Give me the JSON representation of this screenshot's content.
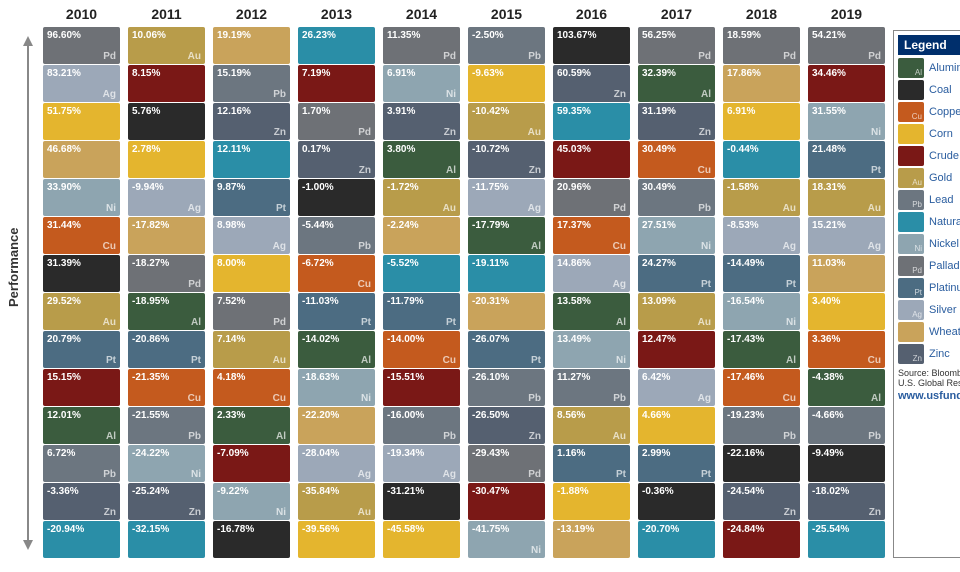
{
  "axis_label": "Performance",
  "years": [
    "2010",
    "2011",
    "2012",
    "2013",
    "2014",
    "2015",
    "2016",
    "2017",
    "2018",
    "2019"
  ],
  "commodities": {
    "Al": {
      "name": "Aluminum",
      "color": "#3b5c3e",
      "ico": ""
    },
    "Coal": {
      "name": "Coal",
      "color": "#2a2a2a",
      "ico": "",
      "sym": ""
    },
    "Cu": {
      "name": "Copper",
      "color": "#c45a1e",
      "ico": ""
    },
    "Corn": {
      "name": "Corn",
      "color": "#e4b52e",
      "ico": "",
      "sym": ""
    },
    "Oil": {
      "name": "Crude Oil",
      "color": "#7a1816",
      "ico": "",
      "sym": ""
    },
    "Au": {
      "name": "Gold",
      "color": "#b89c4a",
      "ico": ""
    },
    "Pb": {
      "name": "Lead",
      "color": "#6c7680",
      "ico": ""
    },
    "Gas": {
      "name": "Natural Gas",
      "color": "#2a8ea7",
      "ico": "",
      "sym": ""
    },
    "Ni": {
      "name": "Nickel",
      "color": "#8ea5b0",
      "ico": ""
    },
    "Pd": {
      "name": "Palladium",
      "color": "#6e7176",
      "ico": ""
    },
    "Pt": {
      "name": "Platinum",
      "color": "#4c6c82",
      "ico": ""
    },
    "Ag": {
      "name": "Silver",
      "color": "#9ca8b8",
      "ico": ""
    },
    "Wheat": {
      "name": "Wheat",
      "color": "#c9a35b",
      "ico": "",
      "sym": ""
    },
    "Zn": {
      "name": "Zinc",
      "color": "#556070",
      "ico": ""
    }
  },
  "legend_title": "Legend",
  "source": "Source: Bloomberg and U.S. Global Research",
  "url": "www.usfunds.com",
  "grid": [
    [
      [
        "Pd",
        "96.60%"
      ],
      [
        "Au",
        "10.06%"
      ],
      [
        "Wheat",
        "19.19%"
      ],
      [
        "Gas",
        "26.23%"
      ],
      [
        "Pd",
        "11.35%"
      ],
      [
        "Pb",
        "-2.50%"
      ],
      [
        "Coal",
        "103.67%"
      ],
      [
        "Pd",
        "56.25%"
      ],
      [
        "Pd",
        "18.59%"
      ],
      [
        "Pd",
        "54.21%"
      ]
    ],
    [
      [
        "Ag",
        "83.21%"
      ],
      [
        "Oil",
        "8.15%"
      ],
      [
        "Pb",
        "15.19%"
      ],
      [
        "Oil",
        "7.19%"
      ],
      [
        "Ni",
        "6.91%"
      ],
      [
        "Corn",
        "-9.63%"
      ],
      [
        "Zn",
        "60.59%"
      ],
      [
        "Al",
        "32.39%"
      ],
      [
        "Wheat",
        "17.86%"
      ],
      [
        "Oil",
        "34.46%"
      ]
    ],
    [
      [
        "Corn",
        "51.75%"
      ],
      [
        "Coal",
        "5.76%"
      ],
      [
        "Zn",
        "12.16%"
      ],
      [
        "Pd",
        "1.70%"
      ],
      [
        "Zn",
        "3.91%"
      ],
      [
        "Au",
        "-10.42%"
      ],
      [
        "Gas",
        "59.35%"
      ],
      [
        "Zn",
        "31.19%"
      ],
      [
        "Corn",
        "6.91%"
      ],
      [
        "Ni",
        "31.55%"
      ]
    ],
    [
      [
        "Wheat",
        "46.68%"
      ],
      [
        "Corn",
        "2.78%"
      ],
      [
        "Gas",
        "12.11%"
      ],
      [
        "Zn",
        "0.17%"
      ],
      [
        "Al",
        "3.80%"
      ],
      [
        "Zn",
        "-10.72%"
      ],
      [
        "Oil",
        "45.03%"
      ],
      [
        "Cu",
        "30.49%"
      ],
      [
        "Gas",
        "-0.44%"
      ],
      [
        "Pt",
        "21.48%"
      ]
    ],
    [
      [
        "Ni",
        "33.90%"
      ],
      [
        "Ag",
        "-9.94%"
      ],
      [
        "Pt",
        "9.87%"
      ],
      [
        "Coal",
        "-1.00%"
      ],
      [
        "Au",
        "-1.72%"
      ],
      [
        "Ag",
        "-11.75%"
      ],
      [
        "Pd",
        "20.96%"
      ],
      [
        "Pb",
        "30.49%"
      ],
      [
        "Au",
        "-1.58%"
      ],
      [
        "Au",
        "18.31%"
      ]
    ],
    [
      [
        "Cu",
        "31.44%"
      ],
      [
        "Wheat",
        "-17.82%"
      ],
      [
        "Ag",
        "8.98%"
      ],
      [
        "Pb",
        "-5.44%"
      ],
      [
        "Wheat",
        "-2.24%"
      ],
      [
        "Al",
        "-17.79%"
      ],
      [
        "Cu",
        "17.37%"
      ],
      [
        "Ni",
        "27.51%"
      ],
      [
        "Ag",
        "-8.53%"
      ],
      [
        "Ag",
        "15.21%"
      ]
    ],
    [
      [
        "Coal",
        "31.39%"
      ],
      [
        "Pd",
        "-18.27%"
      ],
      [
        "Corn",
        "8.00%"
      ],
      [
        "Cu",
        "-6.72%"
      ],
      [
        "Gas",
        "-5.52%"
      ],
      [
        "Gas",
        "-19.11%"
      ],
      [
        "Ag",
        "14.86%"
      ],
      [
        "Pt",
        "24.27%"
      ],
      [
        "Pt",
        "-14.49%"
      ],
      [
        "Wheat",
        "11.03%"
      ]
    ],
    [
      [
        "Au",
        "29.52%"
      ],
      [
        "Al",
        "-18.95%"
      ],
      [
        "Pd",
        "7.52%"
      ],
      [
        "Pt",
        "-11.03%"
      ],
      [
        "Pt",
        "-11.79%"
      ],
      [
        "Wheat",
        "-20.31%"
      ],
      [
        "Al",
        "13.58%"
      ],
      [
        "Au",
        "13.09%"
      ],
      [
        "Ni",
        "-16.54%"
      ],
      [
        "Corn",
        "3.40%"
      ]
    ],
    [
      [
        "Pt",
        "20.79%"
      ],
      [
        "Pt",
        "-20.86%"
      ],
      [
        "Au",
        "7.14%"
      ],
      [
        "Al",
        "-14.02%"
      ],
      [
        "Cu",
        "-14.00%"
      ],
      [
        "Pt",
        "-26.07%"
      ],
      [
        "Ni",
        "13.49%"
      ],
      [
        "Oil",
        "12.47%"
      ],
      [
        "Al",
        "-17.43%"
      ],
      [
        "Cu",
        "3.36%"
      ]
    ],
    [
      [
        "Oil",
        "15.15%"
      ],
      [
        "Cu",
        "-21.35%"
      ],
      [
        "Cu",
        "4.18%"
      ],
      [
        "Ni",
        "-18.63%"
      ],
      [
        "Oil",
        "-15.51%"
      ],
      [
        "Pb",
        "-26.10%"
      ],
      [
        "Pb",
        "11.27%"
      ],
      [
        "Ag",
        "6.42%"
      ],
      [
        "Cu",
        "-17.46%"
      ],
      [
        "Al",
        "-4.38%"
      ]
    ],
    [
      [
        "Al",
        "12.01%"
      ],
      [
        "Pb",
        "-21.55%"
      ],
      [
        "Al",
        "2.33%"
      ],
      [
        "Wheat",
        "-22.20%"
      ],
      [
        "Pb",
        "-16.00%"
      ],
      [
        "Zn",
        "-26.50%"
      ],
      [
        "Au",
        "8.56%"
      ],
      [
        "Corn",
        "4.66%"
      ],
      [
        "Pb",
        "-19.23%"
      ],
      [
        "Pb",
        "-4.66%"
      ]
    ],
    [
      [
        "Pb",
        "6.72%"
      ],
      [
        "Ni",
        "-24.22%"
      ],
      [
        "Oil",
        "-7.09%"
      ],
      [
        "Ag",
        "-28.04%"
      ],
      [
        "Ag",
        "-19.34%"
      ],
      [
        "Pd",
        "-29.43%"
      ],
      [
        "Pt",
        "1.16%"
      ],
      [
        "Pt",
        "2.99%"
      ],
      [
        "Coal",
        "-22.16%"
      ],
      [
        "Coal",
        "-9.49%"
      ]
    ],
    [
      [
        "Zn",
        "-3.36%"
      ],
      [
        "Zn",
        "-25.24%"
      ],
      [
        "Ni",
        "-9.22%"
      ],
      [
        "Au",
        "-35.84%"
      ],
      [
        "Coal",
        "-31.21%"
      ],
      [
        "Oil",
        "-30.47%"
      ],
      [
        "Corn",
        "-1.88%"
      ],
      [
        "Coal",
        "-0.36%"
      ],
      [
        "Zn",
        "-24.54%"
      ],
      [
        "Zn",
        "-18.02%"
      ]
    ],
    [
      [
        "Gas",
        "-20.94%"
      ],
      [
        "Gas",
        "-32.15%"
      ],
      [
        "Coal",
        "-16.78%"
      ],
      [
        "Corn",
        "-39.56%"
      ],
      [
        "Corn",
        "-45.58%"
      ],
      [
        "Ni",
        "-41.75%"
      ],
      [
        "Wheat",
        "-13.19%"
      ],
      [
        "Gas",
        "-20.70%"
      ],
      [
        "Oil",
        "-24.84%"
      ],
      [
        "Gas",
        "-25.54%"
      ]
    ]
  ],
  "legend_order": [
    "Al",
    "Coal",
    "Cu",
    "Corn",
    "Oil",
    "Au",
    "Pb",
    "Gas",
    "Ni",
    "Pd",
    "Pt",
    "Ag",
    "Wheat",
    "Zn"
  ]
}
